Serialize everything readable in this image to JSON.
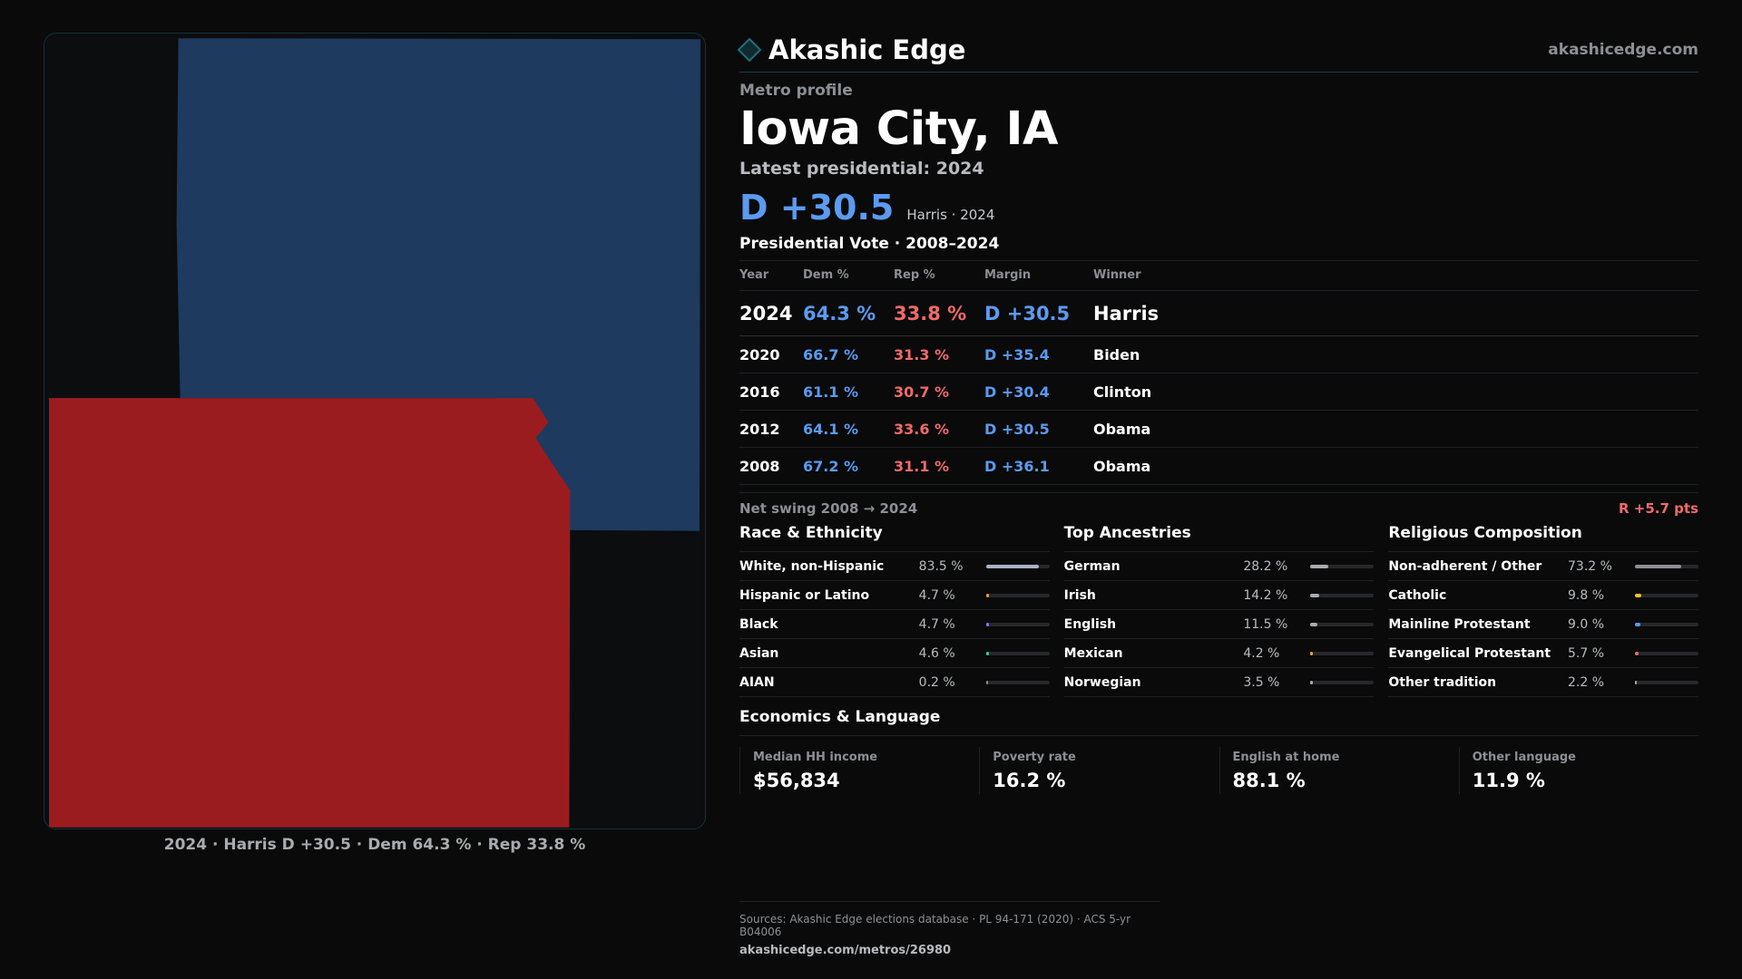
{
  "map": {
    "caption": "2024 · Harris D +30.5 · Dem 64.3 % · Rep 33.8 %",
    "colors": {
      "dem_fill": "#1e3a5f",
      "rep_fill": "#9b1c1f"
    }
  },
  "header": {
    "brand_name": "Akashic Edge",
    "brand_url": "akashicedge.com",
    "logo_icon": "diamond-icon"
  },
  "profile": {
    "kicker": "Metro profile",
    "title": "Iowa City, IA",
    "latest_label": "Latest presidential: 2024",
    "margin": "D +30.5",
    "margin_sub": "Harris · 2024"
  },
  "votes": {
    "title": "Presidential Vote · 2008–2024",
    "headers": {
      "year": "Year",
      "dem": "Dem %",
      "rep": "Rep %",
      "margin": "Margin",
      "winner": "Winner"
    },
    "rows": [
      {
        "year": "2024",
        "dem": "64.3 %",
        "rep": "33.8 %",
        "margin": "D +30.5",
        "winner": "Harris"
      },
      {
        "year": "2020",
        "dem": "66.7 %",
        "rep": "31.3 %",
        "margin": "D +35.4",
        "winner": "Biden"
      },
      {
        "year": "2016",
        "dem": "61.1 %",
        "rep": "30.7 %",
        "margin": "D +30.4",
        "winner": "Clinton"
      },
      {
        "year": "2012",
        "dem": "64.1 %",
        "rep": "33.6 %",
        "margin": "D +30.5",
        "winner": "Obama"
      },
      {
        "year": "2008",
        "dem": "67.2 %",
        "rep": "31.1 %",
        "margin": "D +36.1",
        "winner": "Obama"
      }
    ],
    "swing_label": "Net swing 2008 → 2024",
    "swing_value": "R +5.7 pts"
  },
  "race": {
    "title": "Race & Ethnicity",
    "rows": [
      {
        "name": "White, non-Hispanic",
        "value": "83.5 %",
        "pct": 83.5,
        "color": "#a9b4c4"
      },
      {
        "name": "Hispanic or Latino",
        "value": "4.7 %",
        "pct": 4.7,
        "color": "#f0a030"
      },
      {
        "name": "Black",
        "value": "4.7 %",
        "pct": 4.7,
        "color": "#7b7ff0"
      },
      {
        "name": "Asian",
        "value": "4.6 %",
        "pct": 4.6,
        "color": "#3fc99a"
      },
      {
        "name": "AIAN",
        "value": "0.2 %",
        "pct": 0.2,
        "color": "#8c8f95"
      }
    ]
  },
  "ancestry": {
    "title": "Top Ancestries",
    "rows": [
      {
        "name": "German",
        "value": "28.2 %",
        "pct": 28.2,
        "color": "#a9abb0"
      },
      {
        "name": "Irish",
        "value": "14.2 %",
        "pct": 14.2,
        "color": "#a9abb0"
      },
      {
        "name": "English",
        "value": "11.5 %",
        "pct": 11.5,
        "color": "#a9abb0"
      },
      {
        "name": "Mexican",
        "value": "4.2 %",
        "pct": 4.2,
        "color": "#f0a030"
      },
      {
        "name": "Norwegian",
        "value": "3.5 %",
        "pct": 3.5,
        "color": "#a9abb0"
      }
    ]
  },
  "religion": {
    "title": "Religious Composition",
    "rows": [
      {
        "name": "Non-adherent / Other",
        "value": "73.2 %",
        "pct": 73.2,
        "color": "#8c8f95"
      },
      {
        "name": "Catholic",
        "value": "9.8 %",
        "pct": 9.8,
        "color": "#f0c030"
      },
      {
        "name": "Mainline Protestant",
        "value": "9.0 %",
        "pct": 9.0,
        "color": "#5b9bf0"
      },
      {
        "name": "Evangelical Protestant",
        "value": "5.7 %",
        "pct": 5.7,
        "color": "#f06a6a"
      },
      {
        "name": "Other tradition",
        "value": "2.2 %",
        "pct": 2.2,
        "color": "#a9abb0"
      }
    ]
  },
  "economics": {
    "title": "Economics & Language",
    "cells": [
      {
        "label": "Median HH income",
        "value": "$56,834"
      },
      {
        "label": "Poverty rate",
        "value": "16.2 %"
      },
      {
        "label": "English at home",
        "value": "88.1 %"
      },
      {
        "label": "Other language",
        "value": "11.9 %"
      }
    ]
  },
  "footer": {
    "sources": "Sources: Akashic Edge elections database · PL 94-171 (2020) · ACS 5-yr B04006",
    "url": "akashicedge.com/metros/26980"
  }
}
